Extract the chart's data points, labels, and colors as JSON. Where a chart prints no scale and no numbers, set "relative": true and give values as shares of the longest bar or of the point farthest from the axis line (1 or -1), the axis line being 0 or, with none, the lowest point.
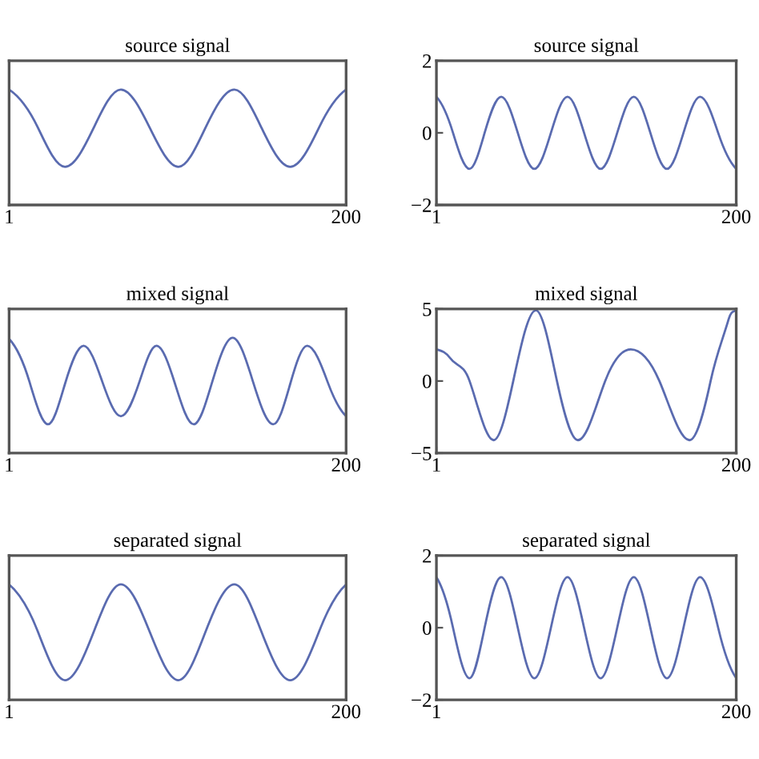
{
  "chart_data": [
    {
      "type": "line",
      "title": "source signal",
      "relative": true,
      "xlim": [
        1,
        200
      ],
      "xticks": [
        1,
        200
      ],
      "series": [
        {
          "color": "#5a6bb0",
          "x": [
            1,
            18,
            34,
            51,
            67,
            84,
            101,
            117,
            134,
            150,
            167,
            184,
            200
          ],
          "values": [
            1,
            0.67,
            0.33,
            0.67,
            1,
            0.67,
            0.33,
            0.67,
            1,
            0.67,
            0.33,
            0.67,
            1
          ]
        }
      ]
    },
    {
      "type": "line",
      "title": "source signal",
      "xlim": [
        1,
        200
      ],
      "xticks": [
        1,
        200
      ],
      "ylim": [
        -2,
        2
      ],
      "yticks": [
        -2,
        0,
        2
      ],
      "series": [
        {
          "color": "#5a6bb0",
          "x": [
            1,
            12,
            23,
            33,
            44,
            55,
            66,
            77,
            88,
            99,
            110,
            121,
            132,
            143,
            154,
            165,
            176,
            188,
            200
          ],
          "values": [
            1,
            0,
            -1,
            0,
            1,
            0,
            -1,
            0,
            1,
            0,
            -1,
            0,
            1,
            0,
            -1,
            0,
            1,
            0,
            -1
          ]
        }
      ]
    },
    {
      "type": "line",
      "title": "mixed signal",
      "relative": true,
      "xlim": [
        1,
        200
      ],
      "xticks": [
        1,
        200
      ],
      "series": [
        {
          "color": "#5a6bb0",
          "x": [
            1,
            13,
            24,
            34,
            45,
            56,
            67,
            78,
            88,
            99,
            110,
            121,
            133,
            145,
            157,
            167,
            177,
            189,
            200
          ],
          "values": [
            0.99,
            0.62,
            0.25,
            0.6,
            0.93,
            0.62,
            0.32,
            0.62,
            0.93,
            0.6,
            0.25,
            0.62,
            1,
            0.62,
            0.25,
            0.6,
            0.93,
            0.62,
            0.32
          ]
        }
      ]
    },
    {
      "type": "line",
      "title": "mixed signal",
      "xlim": [
        1,
        200
      ],
      "xticks": [
        1,
        200
      ],
      "ylim": [
        -5,
        5
      ],
      "yticks": [
        -5,
        0,
        5
      ],
      "series": [
        {
          "color": "#5a6bb0",
          "x": [
            1,
            10,
            23,
            39,
            52,
            67,
            81,
            95,
            113,
            130,
            149,
            169,
            183,
            195,
            200
          ],
          "values": [
            2.2,
            1.6,
            0,
            -4.1,
            0,
            4.9,
            0,
            -4.1,
            0,
            2.2,
            0,
            -4.1,
            0,
            4.3,
            4.9
          ]
        }
      ]
    },
    {
      "type": "line",
      "title": "separated signal",
      "relative": true,
      "xlim": [
        1,
        200
      ],
      "xticks": [
        1,
        200
      ],
      "series": [
        {
          "color": "#5a6bb0",
          "x": [
            1,
            18,
            34,
            51,
            67,
            84,
            101,
            117,
            134,
            150,
            167,
            184,
            200
          ],
          "values": [
            1,
            0.59,
            0.17,
            0.59,
            1,
            0.59,
            0.17,
            0.59,
            1,
            0.59,
            0.17,
            0.59,
            1
          ]
        }
      ]
    },
    {
      "type": "line",
      "title": "separated signal",
      "xlim": [
        1,
        200
      ],
      "xticks": [
        1,
        200
      ],
      "ylim": [
        -2,
        2
      ],
      "yticks": [
        -2,
        0,
        2
      ],
      "series": [
        {
          "color": "#5a6bb0",
          "x": [
            1,
            12,
            23,
            33,
            44,
            55,
            66,
            77,
            88,
            99,
            110,
            121,
            132,
            143,
            154,
            165,
            176,
            188,
            200
          ],
          "values": [
            1.4,
            0,
            -1.4,
            0,
            1.4,
            0,
            -1.4,
            0,
            1.4,
            0,
            -1.4,
            0,
            1.4,
            0,
            -1.4,
            0,
            1.4,
            0,
            -1.4
          ]
        }
      ]
    }
  ]
}
